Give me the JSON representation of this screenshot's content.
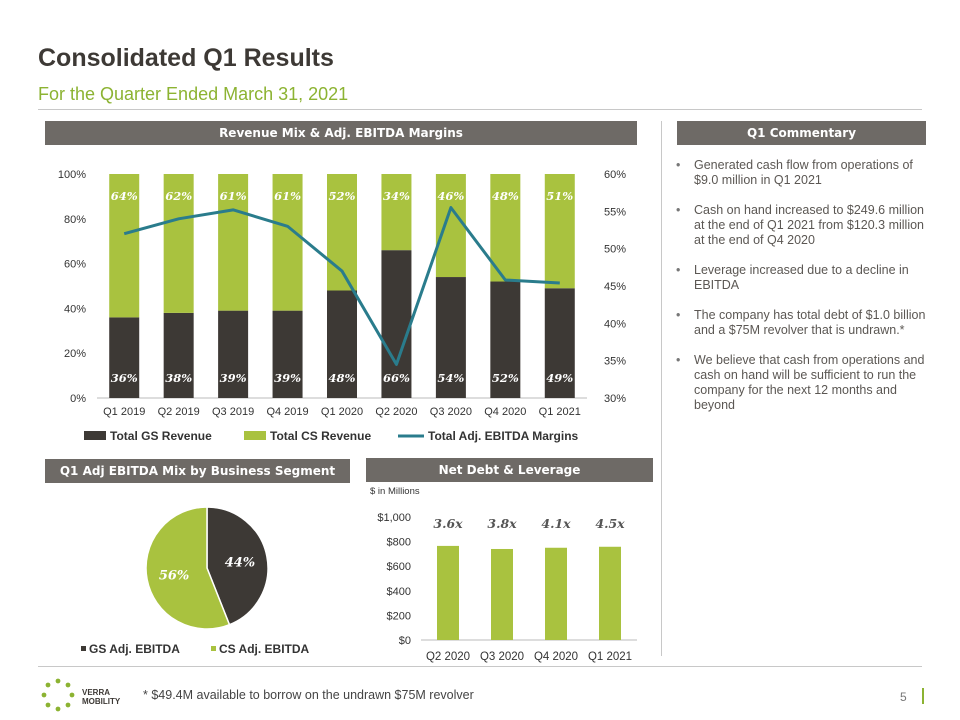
{
  "header": {
    "title": "Consolidated Q1 Results",
    "subtitle": "For the Quarter Ended March 31, 2021"
  },
  "sections": {
    "revenue_mix": "Revenue Mix & Adj. EBITDA Margins",
    "commentary": "Q1 Commentary",
    "segment_mix": "Q1 Adj EBITDA Mix by Business Segment",
    "net_debt": "Net Debt & Leverage"
  },
  "commentary": [
    "Generated cash flow from operations of $9.0 million in Q1 2021",
    "Cash on hand increased to $249.6 million at the end of Q1 2021 from $120.3 million at the end of Q4 2020",
    "Leverage increased due to a decline in EBITDA",
    "The company has total debt of $1.0 billion and a $75M revolver that is undrawn.*",
    "We believe that cash from operations and cash on hand will be sufficient to run the company for the next 12 months and beyond"
  ],
  "footer": {
    "footnote": "* $49.4M available to borrow on the undrawn $75M revolver",
    "page": "5",
    "logo_text_1": "VERRA",
    "logo_text_2": "MOBILITY"
  },
  "colors": {
    "gs": "#3d3935",
    "cs": "#a9c23f",
    "line": "#2a7c8c",
    "band": "#6e6a66",
    "accent": "#8cb332"
  },
  "chart_data": [
    {
      "type": "bar",
      "stacked": true,
      "categories": [
        "Q1 2019",
        "Q2 2019",
        "Q3 2019",
        "Q4 2019",
        "Q1 2020",
        "Q2 2020",
        "Q3 2020",
        "Q4 2020",
        "Q1 2021"
      ],
      "series": [
        {
          "name": "Total GS Revenue",
          "values": [
            36,
            38,
            39,
            39,
            48,
            66,
            54,
            52,
            49
          ],
          "labels": [
            "36%",
            "38%",
            "39%",
            "39%",
            "48%",
            "66%",
            "54%",
            "52%",
            "49%"
          ]
        },
        {
          "name": "Total CS Revenue",
          "values": [
            64,
            62,
            61,
            61,
            52,
            34,
            46,
            48,
            51
          ],
          "labels": [
            "64%",
            "62%",
            "61%",
            "61%",
            "52%",
            "34%",
            "46%",
            "48%",
            "51%"
          ]
        },
        {
          "name": "Total Adj. EBITDA Margins",
          "type": "line",
          "axis": "right",
          "values": [
            52,
            54,
            55.2,
            53,
            47,
            34.5,
            55.5,
            45.8,
            45.4
          ]
        }
      ],
      "ylim": [
        0,
        100
      ],
      "yticks": [
        "0%",
        "20%",
        "40%",
        "60%",
        "80%",
        "100%"
      ],
      "y2lim": [
        30,
        60
      ],
      "y2ticks": [
        "30%",
        "35%",
        "40%",
        "45%",
        "50%",
        "55%",
        "60%"
      ],
      "legend": "bottom"
    },
    {
      "type": "pie",
      "slices": [
        {
          "name": "GS Adj. EBITDA",
          "value": 44,
          "label": "44%"
        },
        {
          "name": "CS Adj. EBITDA",
          "value": 56,
          "label": "56%"
        }
      ],
      "legend": "bottom"
    },
    {
      "type": "bar",
      "categories": [
        "Q2 2020",
        "Q3 2020",
        "Q4 2020",
        "Q1 2021"
      ],
      "values": [
        765,
        740,
        750,
        758
      ],
      "data_labels": [
        "3.6x",
        "3.8x",
        "4.1x",
        "4.5x"
      ],
      "unit_note": "$ in Millions",
      "ylim": [
        0,
        1000
      ],
      "yticks": [
        "$0",
        "$200",
        "$400",
        "$600",
        "$800",
        "$1,000"
      ]
    }
  ]
}
